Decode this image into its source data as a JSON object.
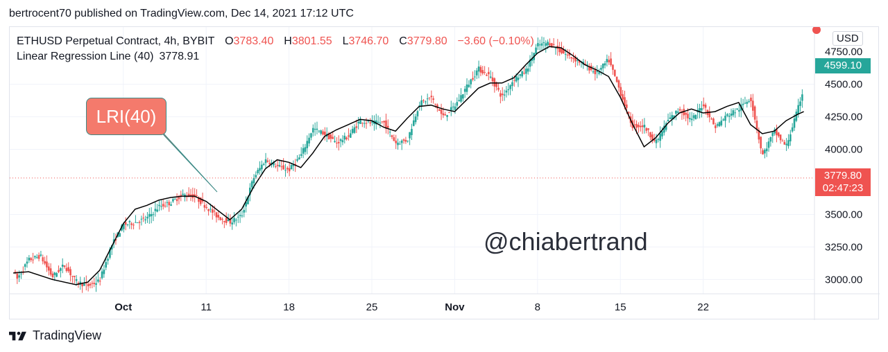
{
  "publisher": "bertrocent70 published on TradingView.com, Dec 14, 2021 17:12 UTC",
  "legend": {
    "symbol": "ETHUSD Perpetual Contract, 4h, BYBIT",
    "open_label": "O",
    "open": "3783.40",
    "high_label": "H",
    "high": "3801.55",
    "low_label": "L",
    "low": "3746.70",
    "close_label": "C",
    "close": "3779.80",
    "change": "−3.60 (−0.10%)",
    "indicator_name": "Linear Regression Line (40)",
    "indicator_value": "3778.91"
  },
  "currency": "USD",
  "price_tags": {
    "high": "4599.10",
    "last_price": "3779.80",
    "countdown": "02:47:23"
  },
  "annotation": "LRI(40)",
  "watermark": "@chiabertrand",
  "brand": "TradingView",
  "colors": {
    "up": "#26a69a",
    "down": "#ef5350",
    "regression": "#000000",
    "annotation_fill": "#f47a6c",
    "annotation_border": "#3d8a86",
    "last_price_line": "#ef5350"
  },
  "chart_data": {
    "type": "candlestick",
    "y_ticks": [
      "3000.00",
      "3250.00",
      "3500.00",
      "4000.00",
      "4250.00",
      "4500.00"
    ],
    "y_tick_partial": "4750.00",
    "ylim": [
      2890,
      4940
    ],
    "x_ticks": [
      {
        "label": "Oct",
        "bold": true,
        "day": 4
      },
      {
        "label": "11",
        "bold": false,
        "day": 11
      },
      {
        "label": "18",
        "bold": false,
        "day": 18
      },
      {
        "label": "25",
        "bold": false,
        "day": 25
      },
      {
        "label": "Nov",
        "bold": true,
        "day": 32
      },
      {
        "label": "8",
        "bold": false,
        "day": 39
      },
      {
        "label": "15",
        "bold": false,
        "day": 46
      },
      {
        "label": "22",
        "bold": false,
        "day": 53
      }
    ],
    "xlim_days": [
      -5.6,
      62.4
    ],
    "last_price": 3779.8,
    "path_days": [
      -5.3,
      -5,
      -4,
      -3,
      -2,
      -1,
      0,
      1,
      2,
      3,
      4,
      5,
      6,
      7,
      8,
      9,
      10,
      11,
      12,
      13,
      14,
      15,
      16,
      17,
      18,
      19,
      20,
      21,
      22,
      23,
      24,
      25,
      26,
      27,
      28,
      29,
      30,
      31,
      32,
      33,
      34,
      35,
      36,
      37,
      38,
      39,
      40,
      41,
      42,
      43,
      44,
      45,
      46,
      47,
      48,
      49,
      50,
      51,
      52,
      53,
      54,
      55,
      56,
      57,
      58,
      59,
      60,
      61,
      61.5
    ],
    "path_close": [
      3080,
      3000,
      3150,
      3180,
      3020,
      3110,
      2985,
      2950,
      2990,
      3260,
      3420,
      3440,
      3470,
      3560,
      3590,
      3650,
      3640,
      3560,
      3480,
      3440,
      3490,
      3780,
      3920,
      3870,
      3840,
      3950,
      4160,
      4120,
      4050,
      4100,
      4220,
      4200,
      4210,
      4050,
      4070,
      4350,
      4400,
      4250,
      4330,
      4480,
      4620,
      4560,
      4400,
      4540,
      4600,
      4800,
      4820,
      4750,
      4700,
      4650,
      4580,
      4690,
      4440,
      4180,
      4180,
      4050,
      4220,
      4310,
      4220,
      4350,
      4170,
      4260,
      4310,
      4400,
      3950,
      4140,
      4020,
      4310,
      4480
    ],
    "regression_days": [
      -5.3,
      -4,
      -2,
      0,
      1,
      2,
      3,
      4,
      5,
      6,
      7,
      8,
      9,
      10,
      11,
      12,
      13,
      14,
      15,
      16,
      17,
      18,
      19,
      20,
      21,
      22,
      23,
      24,
      25,
      26,
      27,
      28,
      29,
      30,
      31,
      32,
      33,
      34,
      35,
      36,
      37,
      38,
      39,
      40,
      41,
      42,
      43,
      44,
      45,
      46,
      47,
      48,
      49,
      50,
      51,
      52,
      53,
      54,
      55,
      56,
      57,
      58,
      59,
      60,
      61,
      61.5
    ],
    "regression_values": [
      3050,
      3060,
      3000,
      2960,
      2980,
      3070,
      3250,
      3430,
      3540,
      3570,
      3610,
      3630,
      3640,
      3640,
      3600,
      3530,
      3460,
      3540,
      3710,
      3850,
      3920,
      3900,
      3860,
      3970,
      4100,
      4150,
      4190,
      4230,
      4220,
      4170,
      4140,
      4240,
      4330,
      4340,
      4310,
      4290,
      4380,
      4470,
      4510,
      4510,
      4550,
      4650,
      4740,
      4790,
      4780,
      4720,
      4650,
      4610,
      4560,
      4400,
      4200,
      4020,
      4090,
      4200,
      4280,
      4310,
      4280,
      4290,
      4330,
      4360,
      4190,
      4120,
      4140,
      4220,
      4270,
      4290
    ]
  }
}
